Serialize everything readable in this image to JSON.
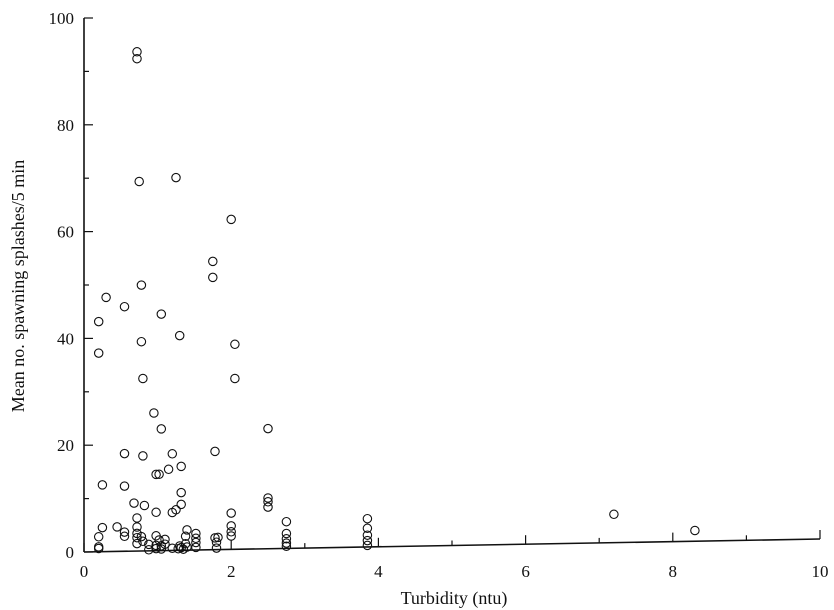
{
  "chart_data": {
    "type": "scatter",
    "xlabel": "Turbidity (ntu)",
    "ylabel": "Mean no. spawning splashes/5 min",
    "xlim": [
      0,
      10
    ],
    "ylim": [
      0,
      100
    ],
    "xticks": [
      "0",
      "2",
      "4",
      "6",
      "8",
      "10"
    ],
    "yticks": [
      "0",
      "20",
      "40",
      "60",
      "80",
      "100"
    ],
    "grid": false,
    "marker": "open-circle",
    "points": [
      [
        0.72,
        93.5
      ],
      [
        0.72,
        92.2
      ],
      [
        0.75,
        69.2
      ],
      [
        1.25,
        69.8
      ],
      [
        2.0,
        61.8
      ],
      [
        1.75,
        54.0
      ],
      [
        1.75,
        51.0
      ],
      [
        0.78,
        49.8
      ],
      [
        0.3,
        47.6
      ],
      [
        0.55,
        45.8
      ],
      [
        1.05,
        44.3
      ],
      [
        0.2,
        43.1
      ],
      [
        1.3,
        40.2
      ],
      [
        0.78,
        39.2
      ],
      [
        2.05,
        38.4
      ],
      [
        0.2,
        37.2
      ],
      [
        0.8,
        32.3
      ],
      [
        2.05,
        32.0
      ],
      [
        0.95,
        25.8
      ],
      [
        1.05,
        22.8
      ],
      [
        2.5,
        22.5
      ],
      [
        0.55,
        18.3
      ],
      [
        0.8,
        17.8
      ],
      [
        1.2,
        18.1
      ],
      [
        1.78,
        18.4
      ],
      [
        1.15,
        15.2
      ],
      [
        1.32,
        15.7
      ],
      [
        0.98,
        14.3
      ],
      [
        1.02,
        14.3
      ],
      [
        0.25,
        12.5
      ],
      [
        0.55,
        12.2
      ],
      [
        1.32,
        10.8
      ],
      [
        2.5,
        9.5
      ],
      [
        2.5,
        8.8
      ],
      [
        0.68,
        9.0
      ],
      [
        0.82,
        8.5
      ],
      [
        1.32,
        8.6
      ],
      [
        1.25,
        7.6
      ],
      [
        1.2,
        7.1
      ],
      [
        0.98,
        7.2
      ],
      [
        2.0,
        6.8
      ],
      [
        2.5,
        7.8
      ],
      [
        0.72,
        6.2
      ],
      [
        0.25,
        4.5
      ],
      [
        0.45,
        4.6
      ],
      [
        2.0,
        4.4
      ],
      [
        2.75,
        5.0
      ],
      [
        3.85,
        5.3
      ],
      [
        7.2,
        5.3
      ],
      [
        0.72,
        4.5
      ],
      [
        0.55,
        3.6
      ],
      [
        1.4,
        3.8
      ],
      [
        1.52,
        3.1
      ],
      [
        0.72,
        3.3
      ],
      [
        0.2,
        2.8
      ],
      [
        0.55,
        2.8
      ],
      [
        0.72,
        2.5
      ],
      [
        0.78,
        2.7
      ],
      [
        0.8,
        1.8
      ],
      [
        0.98,
        2.8
      ],
      [
        1.02,
        2.0
      ],
      [
        1.1,
        2.1
      ],
      [
        1.38,
        2.6
      ],
      [
        1.52,
        2.2
      ],
      [
        1.78,
        2.2
      ],
      [
        1.82,
        2.3
      ],
      [
        2.0,
        2.5
      ],
      [
        2.0,
        3.3
      ],
      [
        2.75,
        2.8
      ],
      [
        3.85,
        3.5
      ],
      [
        3.85,
        2.2
      ],
      [
        8.3,
        2.0
      ],
      [
        0.72,
        1.4
      ],
      [
        0.88,
        1.2
      ],
      [
        0.98,
        1.0
      ],
      [
        1.05,
        0.9
      ],
      [
        1.1,
        1.2
      ],
      [
        1.3,
        0.8
      ],
      [
        1.38,
        1.2
      ],
      [
        1.52,
        1.4
      ],
      [
        1.8,
        1.4
      ],
      [
        2.75,
        1.8
      ],
      [
        2.75,
        1.0
      ],
      [
        3.85,
        1.2
      ],
      [
        0.2,
        0.6
      ],
      [
        0.2,
        0.9
      ],
      [
        0.88,
        0.2
      ],
      [
        0.98,
        0.4
      ],
      [
        1.05,
        0.3
      ],
      [
        1.2,
        0.4
      ],
      [
        1.28,
        0.3
      ],
      [
        1.32,
        0.5
      ],
      [
        1.35,
        0.2
      ],
      [
        1.4,
        0.6
      ],
      [
        1.52,
        0.5
      ],
      [
        1.8,
        0.3
      ],
      [
        2.75,
        0.4
      ],
      [
        3.85,
        0.3
      ]
    ]
  }
}
